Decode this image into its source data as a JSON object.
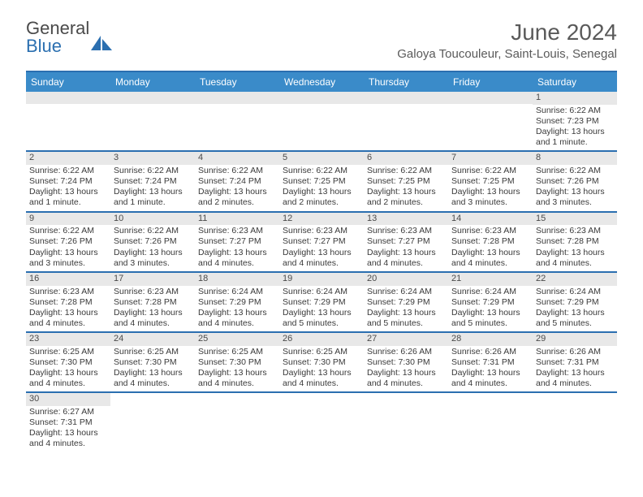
{
  "logo": {
    "text1": "General",
    "text2": "Blue",
    "sail_color": "#2b6fb0"
  },
  "title": "June 2024",
  "location": "Galoya Toucouleur, Saint-Louis, Senegal",
  "day_headers": [
    "Sunday",
    "Monday",
    "Tuesday",
    "Wednesday",
    "Thursday",
    "Friday",
    "Saturday"
  ],
  "colors": {
    "header_bg": "#3a8bc9",
    "border": "#2b6fb0",
    "daybar": "#e8e8e8",
    "text": "#3a3a3a"
  },
  "weeks": [
    [
      null,
      null,
      null,
      null,
      null,
      null,
      {
        "n": "1",
        "sunrise": "Sunrise: 6:22 AM",
        "sunset": "Sunset: 7:23 PM",
        "daylight": "Daylight: 13 hours and 1 minute."
      }
    ],
    [
      {
        "n": "2",
        "sunrise": "Sunrise: 6:22 AM",
        "sunset": "Sunset: 7:24 PM",
        "daylight": "Daylight: 13 hours and 1 minute."
      },
      {
        "n": "3",
        "sunrise": "Sunrise: 6:22 AM",
        "sunset": "Sunset: 7:24 PM",
        "daylight": "Daylight: 13 hours and 1 minute."
      },
      {
        "n": "4",
        "sunrise": "Sunrise: 6:22 AM",
        "sunset": "Sunset: 7:24 PM",
        "daylight": "Daylight: 13 hours and 2 minutes."
      },
      {
        "n": "5",
        "sunrise": "Sunrise: 6:22 AM",
        "sunset": "Sunset: 7:25 PM",
        "daylight": "Daylight: 13 hours and 2 minutes."
      },
      {
        "n": "6",
        "sunrise": "Sunrise: 6:22 AM",
        "sunset": "Sunset: 7:25 PM",
        "daylight": "Daylight: 13 hours and 2 minutes."
      },
      {
        "n": "7",
        "sunrise": "Sunrise: 6:22 AM",
        "sunset": "Sunset: 7:25 PM",
        "daylight": "Daylight: 13 hours and 3 minutes."
      },
      {
        "n": "8",
        "sunrise": "Sunrise: 6:22 AM",
        "sunset": "Sunset: 7:26 PM",
        "daylight": "Daylight: 13 hours and 3 minutes."
      }
    ],
    [
      {
        "n": "9",
        "sunrise": "Sunrise: 6:22 AM",
        "sunset": "Sunset: 7:26 PM",
        "daylight": "Daylight: 13 hours and 3 minutes."
      },
      {
        "n": "10",
        "sunrise": "Sunrise: 6:22 AM",
        "sunset": "Sunset: 7:26 PM",
        "daylight": "Daylight: 13 hours and 3 minutes."
      },
      {
        "n": "11",
        "sunrise": "Sunrise: 6:23 AM",
        "sunset": "Sunset: 7:27 PM",
        "daylight": "Daylight: 13 hours and 4 minutes."
      },
      {
        "n": "12",
        "sunrise": "Sunrise: 6:23 AM",
        "sunset": "Sunset: 7:27 PM",
        "daylight": "Daylight: 13 hours and 4 minutes."
      },
      {
        "n": "13",
        "sunrise": "Sunrise: 6:23 AM",
        "sunset": "Sunset: 7:27 PM",
        "daylight": "Daylight: 13 hours and 4 minutes."
      },
      {
        "n": "14",
        "sunrise": "Sunrise: 6:23 AM",
        "sunset": "Sunset: 7:28 PM",
        "daylight": "Daylight: 13 hours and 4 minutes."
      },
      {
        "n": "15",
        "sunrise": "Sunrise: 6:23 AM",
        "sunset": "Sunset: 7:28 PM",
        "daylight": "Daylight: 13 hours and 4 minutes."
      }
    ],
    [
      {
        "n": "16",
        "sunrise": "Sunrise: 6:23 AM",
        "sunset": "Sunset: 7:28 PM",
        "daylight": "Daylight: 13 hours and 4 minutes."
      },
      {
        "n": "17",
        "sunrise": "Sunrise: 6:23 AM",
        "sunset": "Sunset: 7:28 PM",
        "daylight": "Daylight: 13 hours and 4 minutes."
      },
      {
        "n": "18",
        "sunrise": "Sunrise: 6:24 AM",
        "sunset": "Sunset: 7:29 PM",
        "daylight": "Daylight: 13 hours and 4 minutes."
      },
      {
        "n": "19",
        "sunrise": "Sunrise: 6:24 AM",
        "sunset": "Sunset: 7:29 PM",
        "daylight": "Daylight: 13 hours and 5 minutes."
      },
      {
        "n": "20",
        "sunrise": "Sunrise: 6:24 AM",
        "sunset": "Sunset: 7:29 PM",
        "daylight": "Daylight: 13 hours and 5 minutes."
      },
      {
        "n": "21",
        "sunrise": "Sunrise: 6:24 AM",
        "sunset": "Sunset: 7:29 PM",
        "daylight": "Daylight: 13 hours and 5 minutes."
      },
      {
        "n": "22",
        "sunrise": "Sunrise: 6:24 AM",
        "sunset": "Sunset: 7:29 PM",
        "daylight": "Daylight: 13 hours and 5 minutes."
      }
    ],
    [
      {
        "n": "23",
        "sunrise": "Sunrise: 6:25 AM",
        "sunset": "Sunset: 7:30 PM",
        "daylight": "Daylight: 13 hours and 4 minutes."
      },
      {
        "n": "24",
        "sunrise": "Sunrise: 6:25 AM",
        "sunset": "Sunset: 7:30 PM",
        "daylight": "Daylight: 13 hours and 4 minutes."
      },
      {
        "n": "25",
        "sunrise": "Sunrise: 6:25 AM",
        "sunset": "Sunset: 7:30 PM",
        "daylight": "Daylight: 13 hours and 4 minutes."
      },
      {
        "n": "26",
        "sunrise": "Sunrise: 6:25 AM",
        "sunset": "Sunset: 7:30 PM",
        "daylight": "Daylight: 13 hours and 4 minutes."
      },
      {
        "n": "27",
        "sunrise": "Sunrise: 6:26 AM",
        "sunset": "Sunset: 7:30 PM",
        "daylight": "Daylight: 13 hours and 4 minutes."
      },
      {
        "n": "28",
        "sunrise": "Sunrise: 6:26 AM",
        "sunset": "Sunset: 7:31 PM",
        "daylight": "Daylight: 13 hours and 4 minutes."
      },
      {
        "n": "29",
        "sunrise": "Sunrise: 6:26 AM",
        "sunset": "Sunset: 7:31 PM",
        "daylight": "Daylight: 13 hours and 4 minutes."
      }
    ],
    [
      {
        "n": "30",
        "sunrise": "Sunrise: 6:27 AM",
        "sunset": "Sunset: 7:31 PM",
        "daylight": "Daylight: 13 hours and 4 minutes."
      },
      null,
      null,
      null,
      null,
      null,
      null
    ]
  ]
}
